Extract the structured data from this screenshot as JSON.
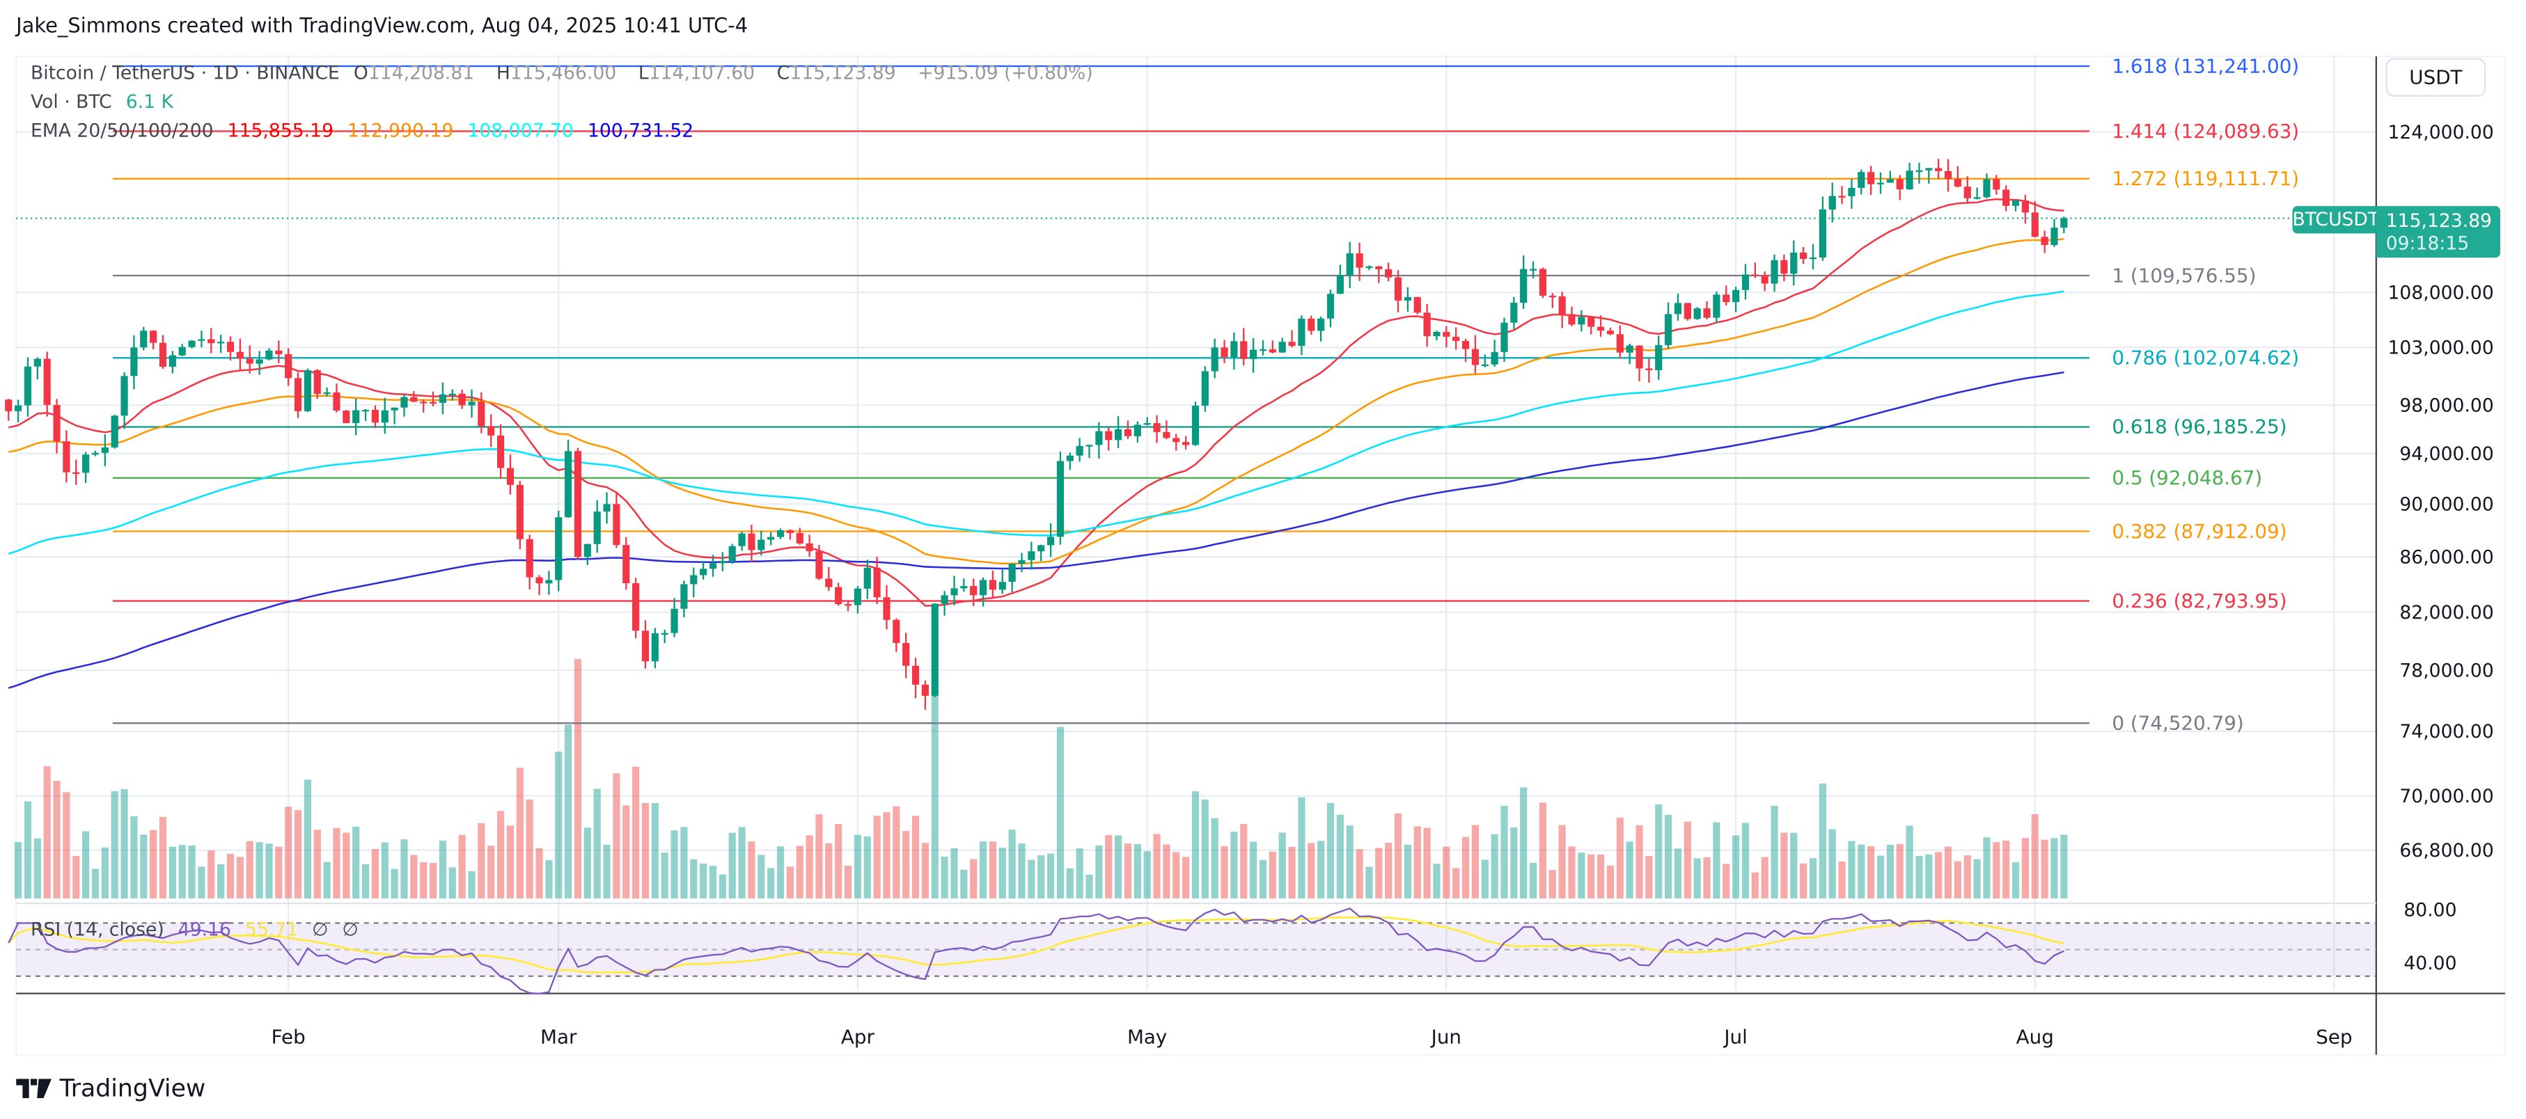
{
  "header": {
    "credit": "Jake_Simmons created with TradingView.com, Aug 04, 2025 10:41 UTC-4"
  },
  "legend": {
    "symbol": "Bitcoin / TetherUS · 1D · BINANCE",
    "open_label": "O",
    "open": "114,208.81",
    "high_label": "H",
    "high": "115,466.00",
    "low_label": "L",
    "low": "114,107.60",
    "close_label": "C",
    "close": "115,123.89",
    "change": "+915.09 (+0.80%)",
    "volume_label": "Vol · BTC",
    "volume": "6.1 K",
    "ema_label": "EMA 20/50/100/200",
    "ema_values": [
      "115,855.19",
      "112,990.19",
      "108,007.70",
      "100,731.52"
    ],
    "ema_colors": [
      "#f23645",
      "#ff9800",
      "#00e5ff",
      "#2b2bd9"
    ],
    "ema_text_colors": [
      "#ff0000",
      "#ff8c00",
      "#00ffff",
      "#0000ff"
    ],
    "rsi_label": "RSI (14, close)",
    "rsi_value": "49.16",
    "rsi_ma_value": "55.71",
    "rsi_extra": [
      "∅",
      "∅"
    ]
  },
  "price_axis": {
    "currency": "USDT",
    "ticks": [
      "124,000.00",
      "108,000.00",
      "103,000.00",
      "98,000.00",
      "94,000.00",
      "90,000.00",
      "86,000.00",
      "82,000.00",
      "78,000.00",
      "74,000.00",
      "70,000.00",
      "66,800.00"
    ],
    "tick_values": [
      124000,
      108000,
      103000,
      98000,
      94000,
      90000,
      86000,
      82000,
      78000,
      74000,
      70000,
      66800
    ],
    "symbol_tag": "BTCUSDT",
    "last_price": "115,123.89",
    "countdown": "09:18:15",
    "rsi_ticks": [
      "80.00",
      "40.00"
    ]
  },
  "fib_levels": [
    {
      "label": "1.618 (131,241.00)",
      "price": 131241.0,
      "color": "#2962ff"
    },
    {
      "label": "1.414 (124,089.63)",
      "price": 124089.63,
      "color": "#f23645"
    },
    {
      "label": "1.272 (119,111.71)",
      "price": 119111.71,
      "color": "#ff9800"
    },
    {
      "label": "1 (109,576.55)",
      "price": 109576.55,
      "color": "#787b86"
    },
    {
      "label": "0.786 (102,074.62)",
      "price": 102074.62,
      "color": "#00acc1"
    },
    {
      "label": "0.618 (96,185.25)",
      "price": 96185.25,
      "color": "#089981"
    },
    {
      "label": "0.5 (92,048.67)",
      "price": 92048.67,
      "color": "#4caf50"
    },
    {
      "label": "0.382 (87,912.09)",
      "price": 87912.09,
      "color": "#ff9800"
    },
    {
      "label": "0.236 (82,793.95)",
      "price": 82793.95,
      "color": "#f23645"
    },
    {
      "label": "0 (74,520.79)",
      "price": 74520.79,
      "color": "#787b86"
    }
  ],
  "time_axis": {
    "months": [
      {
        "label": "Feb",
        "date": "2025-02-01"
      },
      {
        "label": "Mar",
        "date": "2025-03-01"
      },
      {
        "label": "Apr",
        "date": "2025-04-01"
      },
      {
        "label": "May",
        "date": "2025-05-01"
      },
      {
        "label": "Jun",
        "date": "2025-06-01"
      },
      {
        "label": "Jul",
        "date": "2025-07-01"
      },
      {
        "label": "Aug",
        "date": "2025-08-01"
      },
      {
        "label": "Sep",
        "date": "2025-09-01"
      }
    ]
  },
  "colors": {
    "up": "#089981",
    "down": "#f23645",
    "rsi": "#7e57c2",
    "rsi_ma": "#ffeb3b",
    "last_price": "#22ab94"
  },
  "chart_data": {
    "type": "candlestick",
    "title": "Bitcoin / TetherUS · 1D · BINANCE",
    "y_scale": "log",
    "ylim": [
      65000,
      133000
    ],
    "xlim": [
      "2025-01-03",
      "2025-09-08"
    ],
    "grid": true,
    "close_path_approx": [
      [
        "2025-01-03",
        97500
      ],
      [
        "2025-01-06",
        102000
      ],
      [
        "2025-01-08",
        95000
      ],
      [
        "2025-01-09",
        92500
      ],
      [
        "2025-01-13",
        94500
      ],
      [
        "2025-01-15",
        100500
      ],
      [
        "2025-01-17",
        104500
      ],
      [
        "2025-01-19",
        101300
      ],
      [
        "2025-01-20",
        102300
      ],
      [
        "2025-01-22",
        103600
      ],
      [
        "2025-01-26",
        102600
      ],
      [
        "2025-01-27",
        102000
      ],
      [
        "2025-01-31",
        102400
      ],
      [
        "2025-02-02",
        97500
      ],
      [
        "2025-02-03",
        101000
      ],
      [
        "2025-02-07",
        96500
      ],
      [
        "2025-02-12",
        97800
      ],
      [
        "2025-02-20",
        98300
      ],
      [
        "2025-02-24",
        91500
      ],
      [
        "2025-02-26",
        84500
      ],
      [
        "2025-02-28",
        84300
      ],
      [
        "2025-03-02",
        94200
      ],
      [
        "2025-03-03",
        86000
      ],
      [
        "2025-03-06",
        90000
      ],
      [
        "2025-03-09",
        80700
      ],
      [
        "2025-03-10",
        78600
      ],
      [
        "2025-03-14",
        84000
      ],
      [
        "2025-03-19",
        86800
      ],
      [
        "2025-03-24",
        88000
      ],
      [
        "2025-03-26",
        87000
      ],
      [
        "2025-03-28",
        84400
      ],
      [
        "2025-03-31",
        82500
      ],
      [
        "2025-04-02",
        85200
      ],
      [
        "2025-04-06",
        78300
      ],
      [
        "2025-04-08",
        76300
      ],
      [
        "2025-04-09",
        82600
      ],
      [
        "2025-04-11",
        83700
      ],
      [
        "2025-04-15",
        83600
      ],
      [
        "2025-04-21",
        87500
      ],
      [
        "2025-04-22",
        93400
      ],
      [
        "2025-04-25",
        94700
      ],
      [
        "2025-05-01",
        96500
      ],
      [
        "2025-05-05",
        94700
      ],
      [
        "2025-05-08",
        103000
      ],
      [
        "2025-05-12",
        102800
      ],
      [
        "2025-05-15",
        103500
      ],
      [
        "2025-05-19",
        105600
      ],
      [
        "2025-05-21",
        109600
      ],
      [
        "2025-05-22",
        111700
      ],
      [
        "2025-05-26",
        109400
      ],
      [
        "2025-05-30",
        104000
      ],
      [
        "2025-06-05",
        101500
      ],
      [
        "2025-06-09",
        110200
      ],
      [
        "2025-06-10",
        110200
      ],
      [
        "2025-06-13",
        106000
      ],
      [
        "2025-06-17",
        104500
      ],
      [
        "2025-06-22",
        101000
      ],
      [
        "2025-06-24",
        106000
      ],
      [
        "2025-06-30",
        107100
      ],
      [
        "2025-07-03",
        109600
      ],
      [
        "2025-07-09",
        111300
      ],
      [
        "2025-07-10",
        116000
      ],
      [
        "2025-07-14",
        119800
      ],
      [
        "2025-07-16",
        118700
      ],
      [
        "2025-07-22",
        119900
      ],
      [
        "2025-07-24",
        118300
      ],
      [
        "2025-07-28",
        118000
      ],
      [
        "2025-07-31",
        115700
      ],
      [
        "2025-08-01",
        113300
      ],
      [
        "2025-08-02",
        112500
      ],
      [
        "2025-08-03",
        114200
      ],
      [
        "2025-08-04",
        115123.89
      ]
    ],
    "indicators": [
      "EMA 20",
      "EMA 50",
      "EMA 100",
      "EMA 200",
      "Volume",
      "RSI (14, close)"
    ]
  }
}
